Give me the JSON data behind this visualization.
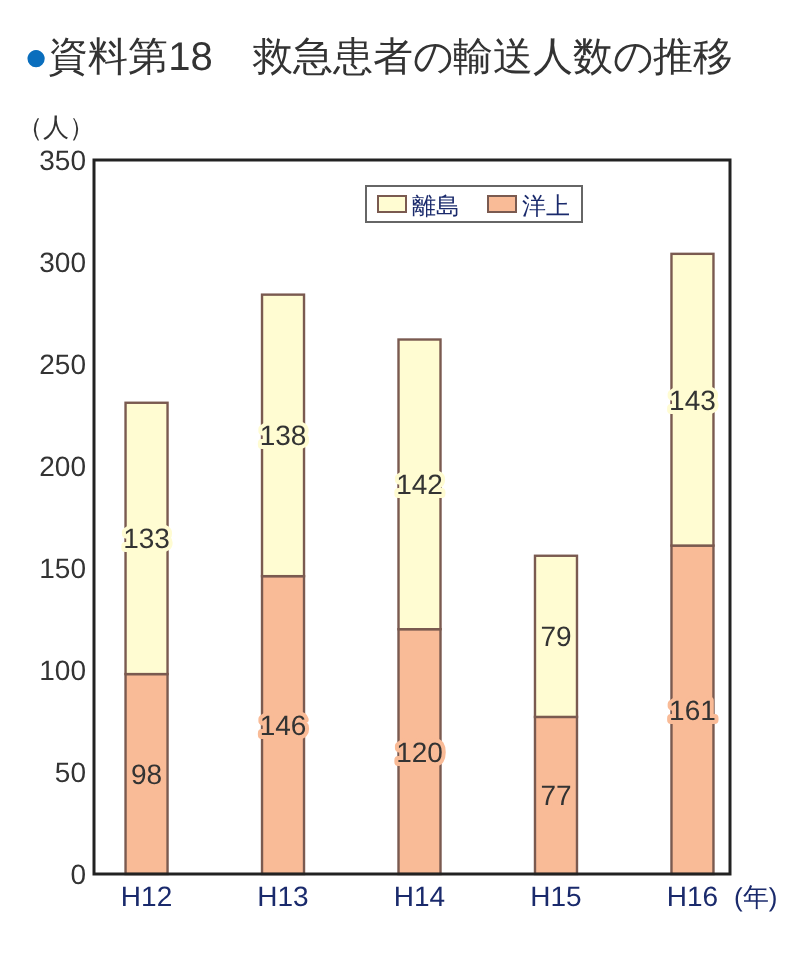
{
  "chart_data": {
    "type": "bar",
    "title": "●資料第18　救急患者の輸送人数の推移",
    "ylabel": "（人）",
    "xlabel": "(年)",
    "categories": [
      "H12",
      "H13",
      "H14",
      "H15",
      "H16"
    ],
    "stacked": true,
    "series": [
      {
        "name": "洋上",
        "color": "#f9bb97",
        "values": [
          98,
          146,
          120,
          77,
          161
        ]
      },
      {
        "name": "離島",
        "color": "#fffcd2",
        "values": [
          133,
          138,
          142,
          79,
          143
        ]
      }
    ],
    "ylim": [
      0,
      350
    ],
    "yticks": [
      0,
      50,
      100,
      150,
      200,
      250,
      300,
      350
    ],
    "legend": "top",
    "data_labels": true,
    "grid": false
  }
}
